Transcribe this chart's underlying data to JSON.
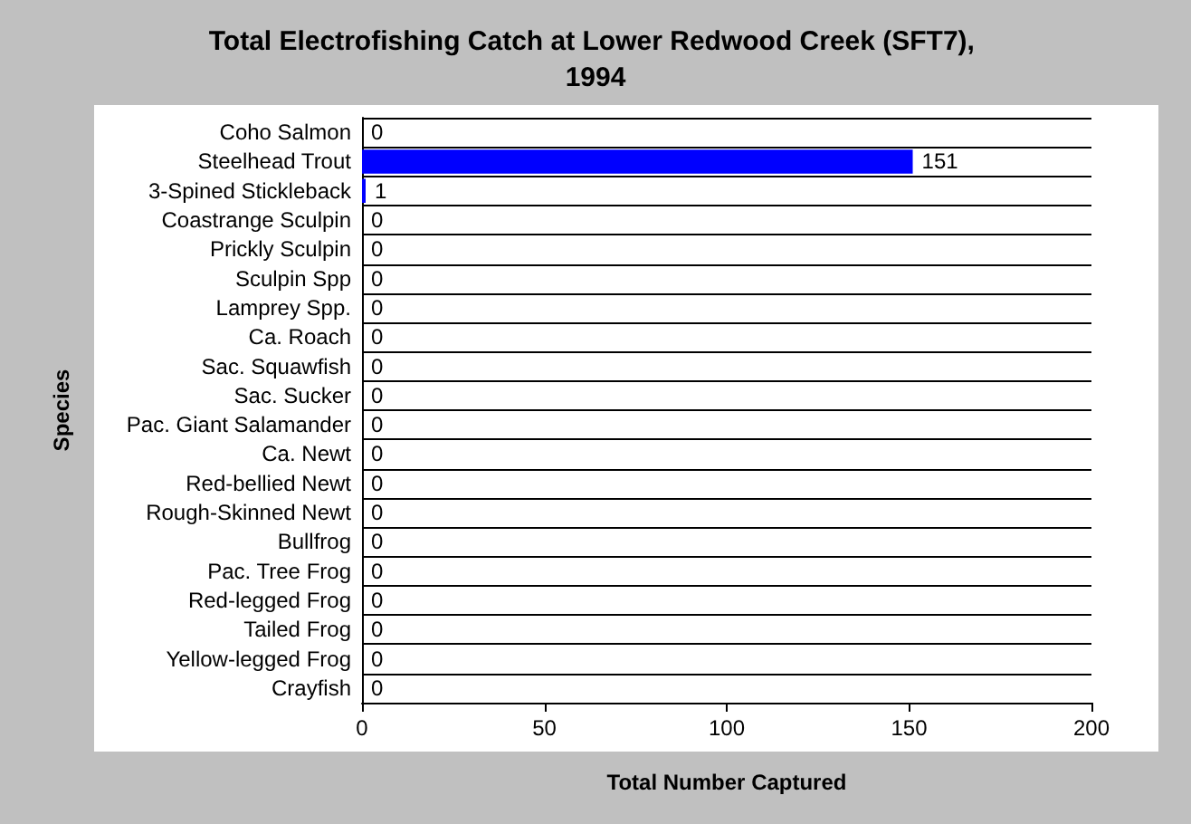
{
  "chart_data": {
    "type": "bar",
    "orientation": "horizontal",
    "title": "Total Electrofishing Catch at Lower Redwood Creek (SFT7), 1994",
    "xlabel": "Total Number Captured",
    "ylabel": "Species",
    "categories": [
      "Coho Salmon",
      "Steelhead Trout",
      "3-Spined Stickleback",
      "Coastrange Sculpin",
      "Prickly Sculpin",
      "Sculpin Spp",
      "Lamprey Spp.",
      "Ca. Roach",
      "Sac. Squawfish",
      "Sac. Sucker",
      "Pac. Giant Salamander",
      "Ca. Newt",
      "Red-bellied Newt",
      "Rough-Skinned Newt",
      "Bullfrog",
      "Pac. Tree Frog",
      "Red-legged Frog",
      "Tailed Frog",
      "Yellow-legged Frog",
      "Crayfish"
    ],
    "values": [
      0,
      151,
      1,
      0,
      0,
      0,
      0,
      0,
      0,
      0,
      0,
      0,
      0,
      0,
      0,
      0,
      0,
      0,
      0,
      0
    ],
    "color": "#0000ff",
    "xlim": [
      0,
      200
    ],
    "xticks": [
      0,
      50,
      100,
      150,
      200
    ],
    "grid": "y",
    "data_labels": true
  }
}
